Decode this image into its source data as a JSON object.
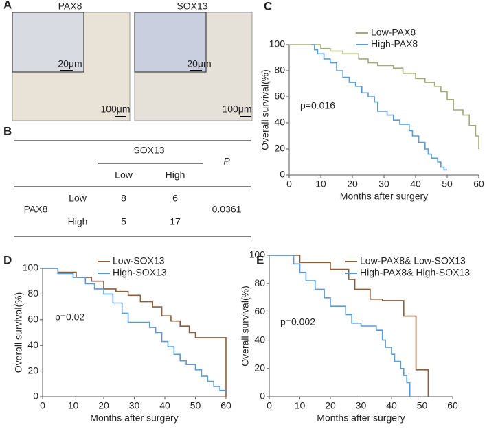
{
  "panel_letters": [
    "A",
    "B",
    "C",
    "D",
    "E"
  ],
  "images": [
    {
      "label": "PAX8",
      "inset_scale": "20μm",
      "scale": "100μm"
    },
    {
      "label": "SOX13",
      "inset_scale": "20μm",
      "scale": "100μm"
    }
  ],
  "table": {
    "header": "SOX13",
    "p_header": "P",
    "subheaders": [
      "Low",
      "High"
    ],
    "row_header": "PAX8",
    "rows": [
      [
        "Low",
        8,
        6
      ],
      [
        "High",
        5,
        17
      ]
    ],
    "p_value": 0.0361
  },
  "chart_data": [
    {
      "type": "step",
      "xlabel": "Months after surgery",
      "ylabel": "Overall survival(%)",
      "annotation": "p=0.016",
      "xlim": [
        0,
        60
      ],
      "ylim": [
        0,
        100
      ],
      "xticks": [
        0,
        10,
        20,
        30,
        40,
        50,
        60
      ],
      "yticks": [
        0,
        20,
        40,
        60,
        80,
        100
      ],
      "series": [
        {
          "name": "Low-PAX8",
          "color": "#a3ab78",
          "x": [
            0,
            10,
            13,
            17,
            22,
            25,
            28,
            33,
            36,
            40,
            43,
            46,
            48,
            50,
            52,
            55,
            57,
            59,
            60
          ],
          "values": [
            100,
            97,
            95,
            93,
            89,
            86,
            84,
            82,
            78,
            74,
            71,
            68,
            64,
            58,
            50,
            46,
            38,
            30,
            20
          ]
        },
        {
          "name": "High-PAX8",
          "color": "#5b9bd5",
          "x": [
            7,
            8,
            9,
            11,
            13,
            15,
            17,
            19,
            21,
            23,
            25,
            27,
            28,
            31,
            33,
            35,
            38,
            39,
            41,
            43,
            44,
            45,
            47,
            48,
            49,
            50
          ],
          "values": [
            100,
            96,
            93,
            89,
            86,
            80,
            75,
            71,
            68,
            63,
            60,
            56,
            49,
            46,
            42,
            39,
            34,
            30,
            25,
            20,
            16,
            13,
            10,
            6,
            4,
            4
          ]
        }
      ]
    },
    {
      "type": "step",
      "xlabel": "Months after surgery",
      "ylabel": "Overall survival(%)",
      "annotation": "p=0.02",
      "xlim": [
        0,
        60
      ],
      "ylim": [
        0,
        100
      ],
      "xticks": [
        0,
        10,
        20,
        30,
        40,
        50,
        60
      ],
      "yticks": [
        0,
        20,
        40,
        60,
        80,
        100
      ],
      "series": [
        {
          "name": "Low-SOX13",
          "color": "#8b5e3c",
          "x": [
            0,
            5,
            11,
            16,
            20,
            24,
            28,
            32,
            36,
            39,
            42,
            45,
            48,
            50,
            60,
            60
          ],
          "values": [
            100,
            97,
            93,
            90,
            84,
            82,
            79,
            74,
            70,
            63,
            59,
            55,
            50,
            46,
            46,
            0
          ]
        },
        {
          "name": "High-SOX13",
          "color": "#5b9bd5",
          "x": [
            0,
            5,
            10,
            14,
            17,
            20,
            23,
            26,
            28,
            35,
            37,
            39,
            41,
            43,
            45,
            47,
            50,
            52,
            54,
            56,
            58,
            60
          ],
          "values": [
            100,
            96,
            93,
            88,
            84,
            80,
            73,
            65,
            58,
            54,
            50,
            43,
            39,
            33,
            28,
            25,
            21,
            16,
            12,
            8,
            5,
            5
          ]
        }
      ]
    },
    {
      "type": "step",
      "xlabel": "Months after surgery",
      "ylabel": "Overall survival(%)",
      "annotation": "p=0.002",
      "xlim": [
        0,
        60
      ],
      "ylim": [
        0,
        100
      ],
      "xticks": [
        0,
        10,
        20,
        30,
        40,
        50,
        60
      ],
      "yticks": [
        0,
        20,
        40,
        60,
        80,
        100
      ],
      "series": [
        {
          "name": "Low-PAX8& Low-SOX13",
          "color": "#8b5e3c",
          "x": [
            0,
            10,
            20,
            26,
            28,
            33,
            37,
            40,
            44,
            47,
            48,
            51,
            52
          ],
          "values": [
            100,
            95,
            90,
            83,
            76,
            69,
            68,
            68,
            57,
            57,
            19,
            19,
            0
          ]
        },
        {
          "name": "High-PAX8& High-SOX13",
          "color": "#5b9bd5",
          "x": [
            0,
            8,
            10,
            12,
            15,
            18,
            20,
            24,
            25,
            27,
            30,
            33,
            35,
            37,
            38,
            40,
            41,
            43,
            44,
            45,
            46
          ],
          "values": [
            100,
            94,
            88,
            82,
            76,
            70,
            64,
            64,
            58,
            52,
            50,
            50,
            47,
            40,
            35,
            30,
            25,
            20,
            15,
            10,
            0
          ]
        }
      ]
    }
  ]
}
